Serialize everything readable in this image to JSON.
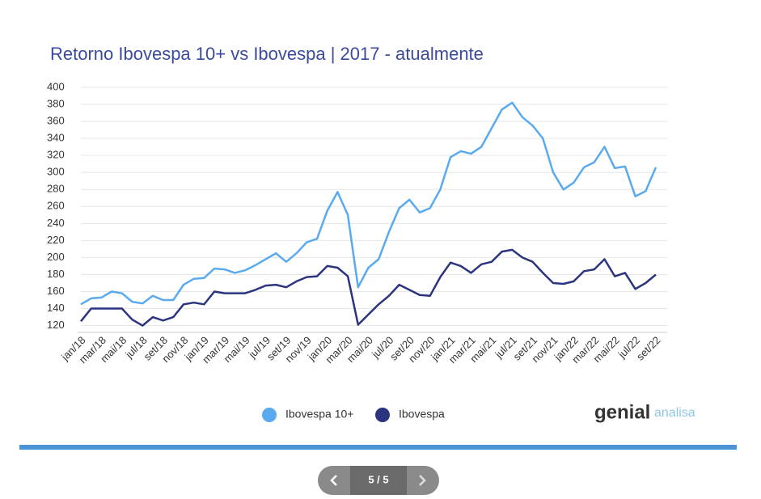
{
  "chart_data": {
    "type": "line",
    "title": "Retorno Ibovespa 10+ vs Ibovespa | 2017 - atualmente",
    "categories": [
      "jan/18",
      null,
      "mar/18",
      null,
      "mai/18",
      null,
      "jul/18",
      null,
      "set/18",
      null,
      "nov/18",
      null,
      "jan/19",
      null,
      "mar/19",
      null,
      "mai/19",
      null,
      "jul/19",
      null,
      "set/19",
      null,
      "nov/19",
      null,
      "jan/20",
      null,
      "mar/20",
      null,
      "mai/20",
      null,
      "jul/20",
      null,
      "set/20",
      null,
      "nov/20",
      null,
      "jan/21",
      null,
      "mar/21",
      null,
      "mai/21",
      null,
      "jul/21",
      null,
      "set/21",
      null,
      "nov/21",
      null,
      "jan/22",
      null,
      "mar/22",
      null,
      "mai/22",
      null,
      "jul/22",
      null,
      "set/22"
    ],
    "series": [
      {
        "name": "Ibovespa 10+",
        "color": "#5aaaf0",
        "values": [
          145,
          152,
          153,
          160,
          158,
          148,
          146,
          155,
          150,
          150,
          168,
          175,
          176,
          187,
          186,
          182,
          185,
          191,
          198,
          205,
          195,
          205,
          218,
          222,
          255,
          277,
          250,
          165,
          188,
          198,
          230,
          258,
          268,
          253,
          258,
          280,
          318,
          325,
          322,
          330,
          352,
          374,
          382,
          365,
          355,
          340,
          300,
          280,
          288,
          306,
          312,
          330,
          305,
          307,
          272,
          278,
          306
        ]
      },
      {
        "name": "Ibovespa",
        "color": "#2b347f",
        "values": [
          125,
          140,
          140,
          140,
          140,
          127,
          120,
          130,
          126,
          130,
          145,
          147,
          145,
          160,
          158,
          158,
          158,
          162,
          167,
          168,
          165,
          172,
          177,
          178,
          190,
          188,
          178,
          121,
          133,
          145,
          155,
          168,
          162,
          156,
          155,
          177,
          194,
          190,
          182,
          192,
          195,
          207,
          209,
          200,
          195,
          182,
          170,
          169,
          172,
          184,
          186,
          198,
          178,
          182,
          163,
          170,
          180
        ]
      }
    ],
    "ylim": [
      112,
      400
    ],
    "yticks": [
      120,
      140,
      160,
      180,
      200,
      220,
      240,
      260,
      280,
      300,
      320,
      340,
      360,
      380,
      400
    ],
    "grid": true,
    "legend": "bottom"
  },
  "brand": {
    "name": "genial",
    "suffix": "analisa"
  },
  "pagination": {
    "page": "5 / 5"
  }
}
